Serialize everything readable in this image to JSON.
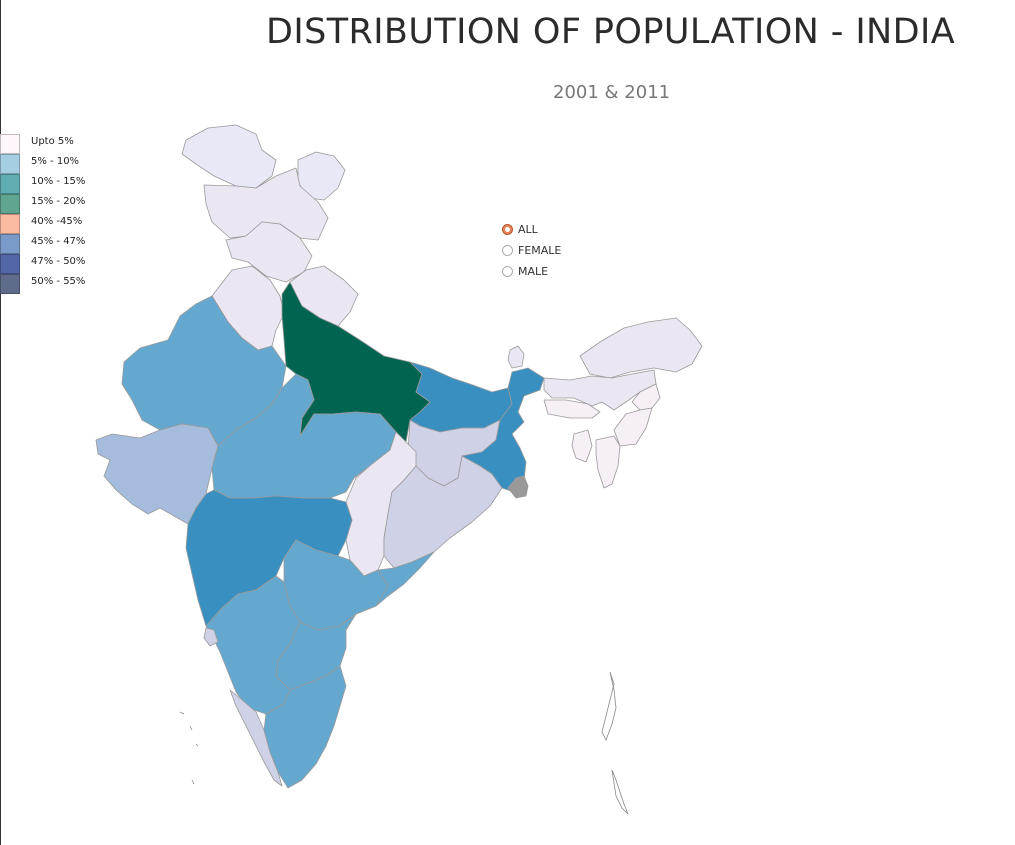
{
  "header": {
    "title": "DISTRIBUTION OF POPULATION - INDIA",
    "subtitle": "2001 & 2011"
  },
  "legend": {
    "items": [
      {
        "label": "Upto 5%",
        "color": "#fff7fb"
      },
      {
        "label": "5% - 10%",
        "color": "#a6cee3"
      },
      {
        "label": "10% - 15%",
        "color": "#5fadb0"
      },
      {
        "label": "15% - 20%",
        "color": "#60a590"
      },
      {
        "label": "40% -45%",
        "color": "#fcbba1"
      },
      {
        "label": "45% - 47%",
        "color": "#7a9bc9"
      },
      {
        "label": "47% - 50%",
        "color": "#5366a8"
      },
      {
        "label": "50% - 55%",
        "color": "#5f6b8a"
      }
    ]
  },
  "filter": {
    "options": [
      {
        "label": "ALL",
        "checked": true
      },
      {
        "label": "FEMALE",
        "checked": false
      },
      {
        "label": "MALE",
        "checked": false
      }
    ]
  },
  "map": {
    "colors": {
      "pale_lavender": "#ebe7f2",
      "very_pale": "#f6f0f6",
      "periwinkle": "#e8e8f6",
      "light_blue": "#64a8cf",
      "medium_blue": "#3990c0",
      "dark_green": "#016450",
      "gray_blue": "#a6bcdc",
      "lilac": "#cfd1e7",
      "gray": "#999999"
    }
  }
}
